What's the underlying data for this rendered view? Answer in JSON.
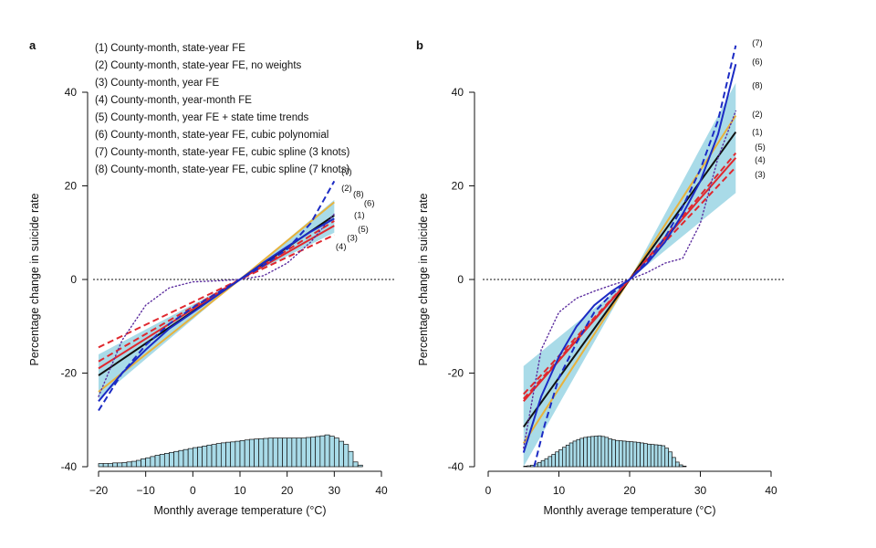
{
  "figure": {
    "legend_items": [
      "(1) County-month, state-year FE",
      "(2) County-month, state-year FE, no weights",
      "(3) County-month, year FE",
      "(4) County-month, year-month FE",
      "(5) County-month, year FE + state time trends",
      "(6) County-month, state-year FE, cubic polynomial",
      "(7) County-month, state-year FE, cubic spline (3 knots)",
      "(8) County-month, state-year FE, cubic spline (7 knots)"
    ],
    "colors": {
      "band": "#a9dbe8",
      "black": "#111111",
      "orange": "#e8b23c",
      "red": "#e0282e",
      "blue": "#1c2bc4",
      "histogram": "#a9dbe8",
      "purple": "#5b2c9e"
    }
  },
  "chart_data": [
    {
      "panel": "a",
      "type": "line",
      "xlabel": "Monthly average temperature (°C)",
      "ylabel": "Percentage change in suicide rate",
      "xlim": [
        -20,
        40
      ],
      "ylim": [
        -40,
        40
      ],
      "xticks": [
        -20,
        -10,
        0,
        10,
        20,
        30,
        40
      ],
      "yticks": [
        -40,
        -20,
        0,
        20,
        40
      ],
      "reference_line_y": 0,
      "confidence_band": {
        "x": [
          -20,
          10,
          30
        ],
        "lower": [
          -25.5,
          0,
          10
        ],
        "upper": [
          -16,
          0,
          17
        ]
      },
      "series": [
        {
          "id": "1",
          "style": "solid",
          "color": "black",
          "x": [
            -20,
            10,
            30
          ],
          "y": [
            -20.5,
            0,
            13.7
          ]
        },
        {
          "id": "2",
          "style": "solid",
          "color": "orange",
          "x": [
            -20,
            10,
            30
          ],
          "y": [
            -24,
            0,
            16.5
          ]
        },
        {
          "id": "3",
          "style": "solid",
          "color": "red",
          "x": [
            -20,
            10,
            30
          ],
          "y": [
            -19,
            0,
            11.5
          ]
        },
        {
          "id": "4",
          "style": "dashed",
          "color": "red",
          "x": [
            -20,
            10,
            30
          ],
          "y": [
            -14.5,
            0,
            9.5
          ]
        },
        {
          "id": "5",
          "style": "dashed",
          "color": "red",
          "x": [
            -20,
            10,
            30
          ],
          "y": [
            -17.5,
            0,
            12.5
          ]
        },
        {
          "id": "6",
          "style": "solid",
          "color": "blue",
          "x": [
            -20,
            -15,
            -10,
            -5,
            0,
            5,
            10,
            15,
            20,
            25,
            30
          ],
          "y": [
            -26,
            -20,
            -15,
            -10.5,
            -7,
            -3.5,
            0,
            3.6,
            7,
            10.2,
            13
          ]
        },
        {
          "id": "7",
          "style": "dashed",
          "color": "blue",
          "x": [
            -20,
            -15,
            -10,
            -5,
            0,
            5,
            10,
            15,
            20,
            25,
            30
          ],
          "y": [
            -28,
            -20,
            -14,
            -9.5,
            -6,
            -3,
            0,
            3,
            6.5,
            12,
            21
          ]
        },
        {
          "id": "8",
          "style": "dotted",
          "color": "purple",
          "x": [
            -20,
            -15,
            -10,
            -5,
            0,
            5,
            10,
            15,
            20,
            25,
            30
          ],
          "y": [
            -25,
            -13,
            -5.5,
            -1.8,
            -0.5,
            -0.3,
            0,
            0.8,
            3.5,
            8,
            14
          ]
        }
      ],
      "line_labels": [
        {
          "text": "(7)",
          "x": 31.5,
          "y": 23
        },
        {
          "text": "(2)",
          "x": 31.5,
          "y": 19.5
        },
        {
          "text": "(8)",
          "x": 34.0,
          "y": 18.2
        },
        {
          "text": "(6)",
          "x": 36.3,
          "y": 16.3
        },
        {
          "text": "(1)",
          "x": 34.2,
          "y": 13.8
        },
        {
          "text": "(5)",
          "x": 35.0,
          "y": 10.7
        },
        {
          "text": "(3)",
          "x": 32.7,
          "y": 8.9
        },
        {
          "text": "(4)",
          "x": 30.3,
          "y": 7.0
        }
      ],
      "histogram": {
        "edges_start": -20,
        "bin_width": 1,
        "counts": [
          0.1,
          0.1,
          0.1,
          0.12,
          0.12,
          0.13,
          0.15,
          0.17,
          0.2,
          0.25,
          0.28,
          0.32,
          0.36,
          0.39,
          0.42,
          0.45,
          0.48,
          0.51,
          0.54,
          0.57,
          0.6,
          0.62,
          0.65,
          0.68,
          0.7,
          0.73,
          0.75,
          0.77,
          0.78,
          0.8,
          0.82,
          0.84,
          0.86,
          0.87,
          0.88,
          0.89,
          0.9,
          0.9,
          0.9,
          0.9,
          0.9,
          0.9,
          0.9,
          0.9,
          0.92,
          0.93,
          0.95,
          0.97,
          1.0,
          0.96,
          0.9,
          0.8,
          0.7,
          0.48,
          0.15,
          0.05
        ],
        "baseline_y": -40,
        "max_height_y": 6.8
      }
    },
    {
      "panel": "b",
      "type": "line",
      "xlabel": "Monthly average temperature (°C)",
      "ylabel": "Percentage change in suicide rate",
      "xlim": [
        0,
        40
      ],
      "ylim": [
        -40,
        40
      ],
      "xticks": [
        0,
        10,
        20,
        30,
        40
      ],
      "yticks": [
        -40,
        -20,
        0,
        20,
        40
      ],
      "reference_line_y": 0,
      "confidence_band": {
        "x": [
          5,
          20,
          35
        ],
        "lower": [
          -40,
          0,
          18.5
        ],
        "upper": [
          -18.5,
          0,
          42
        ]
      },
      "series": [
        {
          "id": "1",
          "style": "solid",
          "color": "black",
          "x": [
            5,
            20,
            35
          ],
          "y": [
            -31.5,
            0,
            31.5
          ]
        },
        {
          "id": "2",
          "style": "solid",
          "color": "orange",
          "x": [
            5,
            20,
            35
          ],
          "y": [
            -35,
            0,
            35
          ]
        },
        {
          "id": "3",
          "style": "solid",
          "color": "red",
          "x": [
            5,
            20,
            35
          ],
          "y": [
            -26,
            0,
            26
          ]
        },
        {
          "id": "4",
          "style": "dashed",
          "color": "red",
          "x": [
            5,
            20,
            35
          ],
          "y": [
            -24.5,
            0,
            24
          ]
        },
        {
          "id": "5",
          "style": "dashed",
          "color": "red",
          "x": [
            5,
            20,
            35
          ],
          "y": [
            -25.5,
            0,
            27
          ]
        },
        {
          "id": "6",
          "style": "solid",
          "color": "blue",
          "x": [
            5,
            7.5,
            10,
            12.5,
            15,
            17.5,
            20,
            22.5,
            25,
            27.5,
            30,
            32.5,
            35
          ],
          "y": [
            -37,
            -25,
            -16.5,
            -10,
            -5.5,
            -2.5,
            0,
            3.5,
            8,
            14,
            21,
            31,
            46
          ]
        },
        {
          "id": "7",
          "style": "dashed",
          "color": "blue",
          "x": [
            6.5,
            8,
            10,
            12.5,
            15,
            17.5,
            20,
            22.5,
            25,
            27.5,
            30,
            32.5,
            35
          ],
          "y": [
            -40,
            -31,
            -21,
            -13.5,
            -7,
            -3,
            0,
            4,
            9,
            15.5,
            23.5,
            34,
            50
          ]
        },
        {
          "id": "8",
          "style": "dotted",
          "color": "purple",
          "x": [
            5,
            7.5,
            10,
            12.5,
            15,
            17.5,
            20,
            22.5,
            25,
            27.5,
            30,
            32.5,
            35
          ],
          "y": [
            -36,
            -15,
            -7,
            -4,
            -2.5,
            -1.2,
            0,
            1.5,
            3.5,
            4.5,
            12,
            26,
            36
          ]
        }
      ],
      "line_labels": [
        {
          "text": "(7)",
          "x": 37.3,
          "y": 50.5
        },
        {
          "text": "(6)",
          "x": 37.3,
          "y": 46.5
        },
        {
          "text": "(8)",
          "x": 37.3,
          "y": 41.5
        },
        {
          "text": "(2)",
          "x": 37.3,
          "y": 35.3
        },
        {
          "text": "(1)",
          "x": 37.3,
          "y": 31.5
        },
        {
          "text": "(5)",
          "x": 37.7,
          "y": 28.3
        },
        {
          "text": "(4)",
          "x": 37.7,
          "y": 25.6
        },
        {
          "text": "(3)",
          "x": 37.7,
          "y": 22.4
        }
      ],
      "histogram": {
        "edges_start": 5,
        "bin_width": 0.5,
        "counts": [
          0.02,
          0.03,
          0.05,
          0.09,
          0.14,
          0.2,
          0.26,
          0.33,
          0.4,
          0.48,
          0.55,
          0.63,
          0.7,
          0.77,
          0.83,
          0.88,
          0.92,
          0.95,
          0.97,
          0.98,
          0.99,
          1.0,
          0.98,
          0.95,
          0.9,
          0.87,
          0.85,
          0.84,
          0.83,
          0.82,
          0.81,
          0.8,
          0.79,
          0.77,
          0.75,
          0.73,
          0.72,
          0.71,
          0.7,
          0.68,
          0.6,
          0.48,
          0.3,
          0.15,
          0.06,
          0.02
        ],
        "baseline_y": -40,
        "max_height_y": 6.6
      }
    }
  ]
}
